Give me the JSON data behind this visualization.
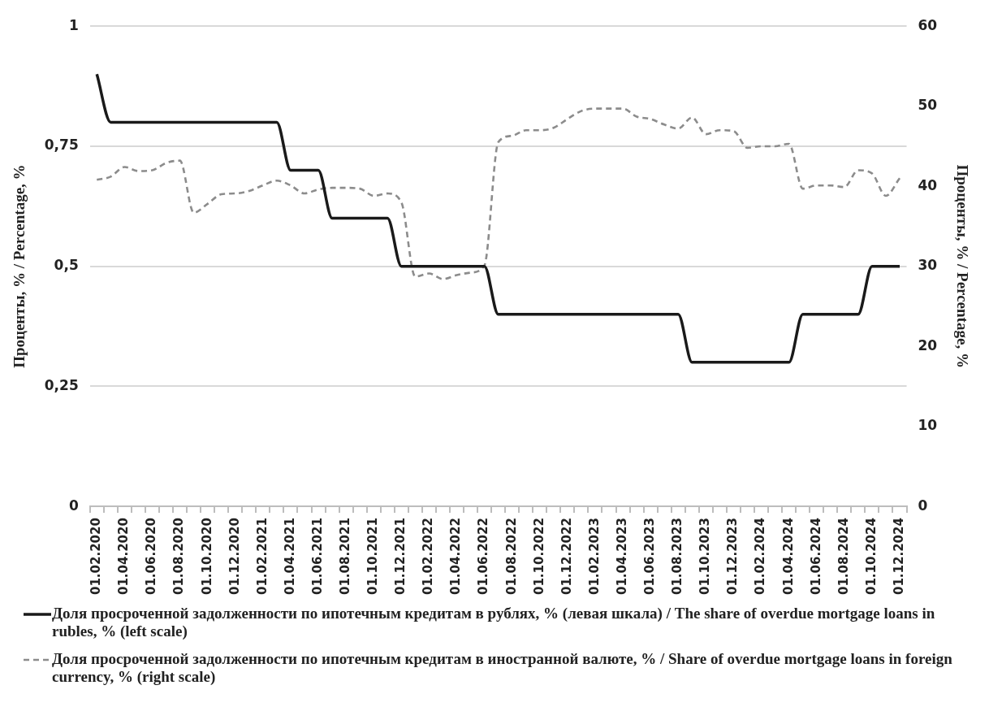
{
  "chart_data": {
    "type": "line",
    "ylabel": "Проценты, % / Percentage, %",
    "y2label": "Проценты, % / Percentage, %",
    "categories": [
      "01.02.2020",
      null,
      "01.04.2020",
      null,
      "01.06.2020",
      null,
      "01.08.2020",
      null,
      "01.10.2020",
      null,
      "01.12.2020",
      null,
      "01.02.2021",
      null,
      "01.04.2021",
      null,
      "01.06.2021",
      null,
      "01.08.2021",
      null,
      "01.10.2021",
      null,
      "01.12.2021",
      null,
      "01.02.2022",
      null,
      "01.04.2022",
      null,
      "01.06.2022",
      null,
      "01.08.2022",
      null,
      "01.10.2022",
      null,
      "01.12.2022",
      null,
      "01.02.2023",
      null,
      "01.04.2023",
      null,
      "01.06.2023",
      null,
      "01.08.2023",
      null,
      "01.10.2023",
      null,
      "01.12.2023",
      null,
      "01.02.2024",
      null,
      "01.04.2024",
      null,
      "01.06.2024",
      null,
      "01.08.2024",
      null,
      "01.10.2024",
      null,
      "01.12.2024"
    ],
    "series": [
      {
        "name": "Доля просроченной задолженности по ипотечным кредитам в рублях, % (левая шкала) / The share of overdue mortgage loans in rubles, % (left scale)",
        "color": "#1a1a1a",
        "line_style": "solid",
        "values": [
          0.9,
          0.8,
          0.8,
          0.8,
          0.8,
          0.8,
          0.8,
          0.8,
          0.8,
          0.8,
          0.8,
          0.8,
          0.8,
          0.8,
          0.7,
          0.7,
          0.7,
          0.6,
          0.6,
          0.6,
          0.6,
          0.6,
          0.5,
          0.5,
          0.5,
          0.5,
          0.5,
          0.5,
          0.5,
          0.4,
          0.4,
          0.4,
          0.4,
          0.4,
          0.4,
          0.4,
          0.4,
          0.4,
          0.4,
          0.4,
          0.4,
          0.4,
          0.4,
          0.3,
          0.3,
          0.3,
          0.3,
          0.3,
          0.3,
          0.3,
          0.3,
          0.4,
          0.4,
          0.4,
          0.4,
          0.4,
          0.5,
          0.5,
          0.5
        ]
      },
      {
        "name": "Доля просроченной задолженности по ипотечным кредитам в иностранной валюте, % / Share of overdue mortgage loans in foreign currency, % (right scale)",
        "color": "#8c8c8c",
        "line_style": "dashed",
        "axis": "y2",
        "values": [
          40.8,
          41.2,
          42.4,
          41.9,
          42.0,
          42.9,
          43.2,
          36.7,
          37.8,
          39.0,
          39.1,
          39.4,
          40.1,
          40.7,
          40.1,
          39.1,
          39.6,
          39.8,
          39.8,
          39.7,
          38.8,
          39.1,
          38.0,
          28.7,
          29.1,
          28.4,
          28.9,
          29.2,
          30.1,
          45.5,
          46.3,
          47.0,
          47.0,
          47.3,
          48.4,
          49.4,
          49.7,
          49.7,
          49.7,
          48.7,
          48.4,
          47.7,
          47.2,
          48.6,
          46.5,
          47.0,
          46.9,
          44.8,
          45.0,
          45.0,
          45.3,
          39.7,
          40.1,
          40.1,
          39.9,
          42.0,
          41.6,
          38.8,
          41.0
        ]
      }
    ],
    "ylim": [
      0,
      1
    ],
    "yticks": [
      0,
      {
        "value": 0.25,
        "label": "0,25"
      },
      {
        "value": 0.5,
        "label": "0,5"
      },
      {
        "value": 0.75,
        "label": "0,75"
      },
      1
    ],
    "y2lim": [
      0,
      60
    ],
    "y2ticks": [
      0,
      10,
      20,
      30,
      40,
      50,
      60
    ],
    "grid": "y",
    "legend": "bottom"
  }
}
